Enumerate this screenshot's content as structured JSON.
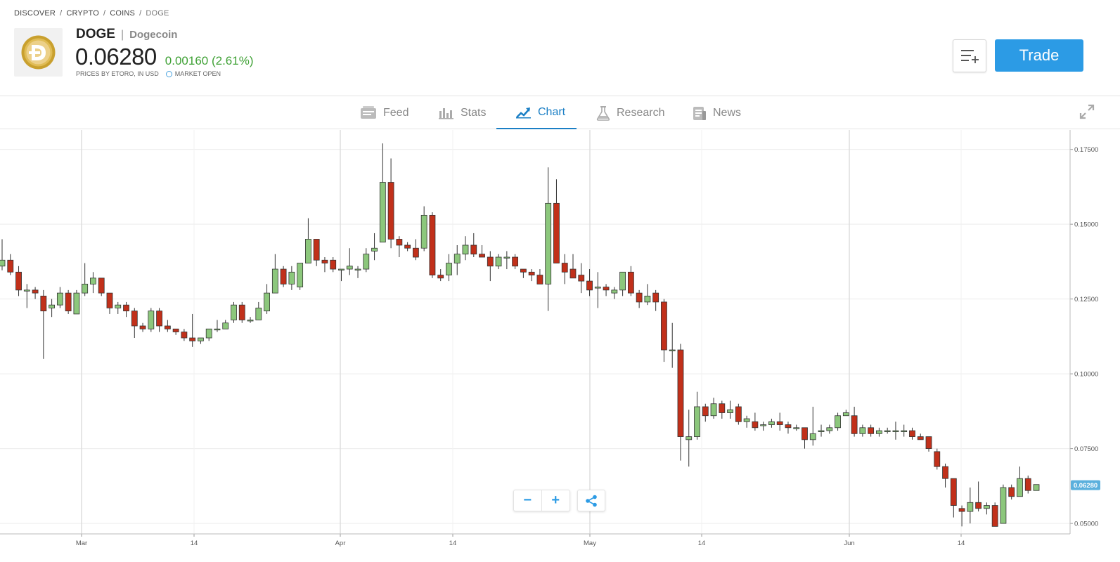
{
  "breadcrumb": {
    "items": [
      "DISCOVER",
      "CRYPTO",
      "COINS",
      "DOGE"
    ],
    "separator": "/"
  },
  "asset": {
    "symbol": "DOGE",
    "name": "Dogecoin",
    "price": "0.06280",
    "change": "0.00160 (2.61%)",
    "price_source": "PRICES BY ETORO, IN USD",
    "market_status": "MARKET OPEN",
    "change_color": "#3fa135"
  },
  "actions": {
    "trade_label": "Trade"
  },
  "tabs": [
    {
      "label": "Feed",
      "icon": "feed-icon",
      "active": false
    },
    {
      "label": "Stats",
      "icon": "stats-icon",
      "active": false
    },
    {
      "label": "Chart",
      "icon": "chart-icon",
      "active": true
    },
    {
      "label": "Research",
      "icon": "research-icon",
      "active": false
    },
    {
      "label": "News",
      "icon": "news-icon",
      "active": false
    }
  ],
  "colors": {
    "accent": "#2c9be5",
    "up_candle": "#8cc77c",
    "down_candle": "#c1301a",
    "price_tag": "#5bb0dd"
  },
  "chart_data": {
    "type": "candlestick",
    "x_tick_labels": [
      "Mar",
      "14",
      "Apr",
      "14",
      "May",
      "14",
      "Jun",
      "14"
    ],
    "y_tick_labels": [
      "0.17500",
      "0.15000",
      "0.12500",
      "0.10000",
      "0.07500",
      "0.05000"
    ],
    "y_ticks": [
      0.175,
      0.15,
      0.125,
      0.1,
      0.075,
      0.05
    ],
    "ylim": [
      0.0465,
      0.1815
    ],
    "last_price_label": "0.06280",
    "last_price": 0.0628,
    "grid": true,
    "candles": [
      [
        0.136,
        0.138,
        0.1346,
        0.145
      ],
      [
        0.138,
        0.134,
        0.133,
        0.14
      ],
      [
        0.134,
        0.128,
        0.126,
        0.136
      ],
      [
        0.128,
        0.128,
        0.122,
        0.13
      ],
      [
        0.128,
        0.127,
        0.125,
        0.129
      ],
      [
        0.126,
        0.121,
        0.105,
        0.128
      ],
      [
        0.122,
        0.123,
        0.119,
        0.125
      ],
      [
        0.123,
        0.127,
        0.122,
        0.129
      ],
      [
        0.127,
        0.121,
        0.12,
        0.128
      ],
      [
        0.12,
        0.127,
        0.12,
        0.128
      ],
      [
        0.127,
        0.13,
        0.126,
        0.137
      ],
      [
        0.13,
        0.132,
        0.127,
        0.134
      ],
      [
        0.132,
        0.127,
        0.126,
        0.132
      ],
      [
        0.127,
        0.122,
        0.12,
        0.127
      ],
      [
        0.122,
        0.123,
        0.12,
        0.124
      ],
      [
        0.123,
        0.121,
        0.119,
        0.124
      ],
      [
        0.121,
        0.116,
        0.112,
        0.122
      ],
      [
        0.116,
        0.115,
        0.114,
        0.117
      ],
      [
        0.115,
        0.121,
        0.114,
        0.122
      ],
      [
        0.121,
        0.116,
        0.114,
        0.122
      ],
      [
        0.116,
        0.115,
        0.114,
        0.118
      ],
      [
        0.115,
        0.114,
        0.113,
        0.115
      ],
      [
        0.114,
        0.112,
        0.111,
        0.115
      ],
      [
        0.112,
        0.111,
        0.109,
        0.12
      ],
      [
        0.111,
        0.112,
        0.11,
        0.112
      ],
      [
        0.112,
        0.115,
        0.111,
        0.115
      ],
      [
        0.115,
        0.115,
        0.114,
        0.118
      ],
      [
        0.115,
        0.117,
        0.115,
        0.118
      ],
      [
        0.118,
        0.123,
        0.117,
        0.124
      ],
      [
        0.123,
        0.118,
        0.117,
        0.124
      ],
      [
        0.118,
        0.118,
        0.117,
        0.119
      ],
      [
        0.118,
        0.122,
        0.118,
        0.124
      ],
      [
        0.121,
        0.127,
        0.12,
        0.13
      ],
      [
        0.127,
        0.135,
        0.127,
        0.14
      ],
      [
        0.135,
        0.13,
        0.129,
        0.136
      ],
      [
        0.13,
        0.134,
        0.128,
        0.136
      ],
      [
        0.129,
        0.137,
        0.128,
        0.137
      ],
      [
        0.137,
        0.145,
        0.137,
        0.152
      ],
      [
        0.145,
        0.138,
        0.136,
        0.145
      ],
      [
        0.138,
        0.137,
        0.134,
        0.139
      ],
      [
        0.138,
        0.135,
        0.134,
        0.139
      ],
      [
        0.135,
        0.135,
        0.131,
        0.135
      ],
      [
        0.135,
        0.136,
        0.133,
        0.142
      ],
      [
        0.135,
        0.135,
        0.132,
        0.136
      ],
      [
        0.135,
        0.14,
        0.134,
        0.142
      ],
      [
        0.141,
        0.142,
        0.138,
        0.147
      ],
      [
        0.144,
        0.164,
        0.144,
        0.177
      ],
      [
        0.164,
        0.145,
        0.142,
        0.172
      ],
      [
        0.145,
        0.143,
        0.139,
        0.146
      ],
      [
        0.143,
        0.142,
        0.141,
        0.144
      ],
      [
        0.142,
        0.139,
        0.138,
        0.145
      ],
      [
        0.142,
        0.153,
        0.141,
        0.156
      ],
      [
        0.153,
        0.133,
        0.132,
        0.154
      ],
      [
        0.133,
        0.132,
        0.131,
        0.135
      ],
      [
        0.133,
        0.137,
        0.131,
        0.14
      ],
      [
        0.137,
        0.14,
        0.133,
        0.143
      ],
      [
        0.14,
        0.143,
        0.138,
        0.146
      ],
      [
        0.143,
        0.14,
        0.139,
        0.147
      ],
      [
        0.14,
        0.139,
        0.139,
        0.143
      ],
      [
        0.139,
        0.136,
        0.131,
        0.141
      ],
      [
        0.136,
        0.139,
        0.135,
        0.14
      ],
      [
        0.139,
        0.139,
        0.135,
        0.141
      ],
      [
        0.139,
        0.136,
        0.135,
        0.14
      ],
      [
        0.135,
        0.134,
        0.132,
        0.135
      ],
      [
        0.134,
        0.133,
        0.131,
        0.135
      ],
      [
        0.133,
        0.13,
        0.13,
        0.135
      ],
      [
        0.13,
        0.157,
        0.121,
        0.169
      ],
      [
        0.157,
        0.137,
        0.137,
        0.165
      ],
      [
        0.137,
        0.134,
        0.13,
        0.14
      ],
      [
        0.135,
        0.132,
        0.132,
        0.14
      ],
      [
        0.133,
        0.131,
        0.127,
        0.137
      ],
      [
        0.131,
        0.128,
        0.126,
        0.135
      ],
      [
        0.129,
        0.129,
        0.122,
        0.134
      ],
      [
        0.129,
        0.128,
        0.126,
        0.13
      ],
      [
        0.127,
        0.128,
        0.125,
        0.129
      ],
      [
        0.128,
        0.134,
        0.126,
        0.134
      ],
      [
        0.134,
        0.127,
        0.126,
        0.136
      ],
      [
        0.127,
        0.124,
        0.122,
        0.128
      ],
      [
        0.124,
        0.126,
        0.123,
        0.13
      ],
      [
        0.127,
        0.124,
        0.121,
        0.128
      ],
      [
        0.124,
        0.108,
        0.104,
        0.125
      ],
      [
        0.108,
        0.108,
        0.102,
        0.117
      ],
      [
        0.108,
        0.079,
        0.071,
        0.11
      ],
      [
        0.078,
        0.079,
        0.069,
        0.088
      ],
      [
        0.079,
        0.089,
        0.078,
        0.094
      ],
      [
        0.089,
        0.086,
        0.084,
        0.09
      ],
      [
        0.086,
        0.09,
        0.085,
        0.092
      ],
      [
        0.09,
        0.087,
        0.085,
        0.091
      ],
      [
        0.087,
        0.088,
        0.085,
        0.091
      ],
      [
        0.089,
        0.084,
        0.083,
        0.09
      ],
      [
        0.084,
        0.085,
        0.082,
        0.086
      ],
      [
        0.084,
        0.082,
        0.081,
        0.087
      ],
      [
        0.083,
        0.083,
        0.081,
        0.084
      ],
      [
        0.083,
        0.084,
        0.082,
        0.085
      ],
      [
        0.084,
        0.083,
        0.081,
        0.087
      ],
      [
        0.083,
        0.082,
        0.08,
        0.084
      ],
      [
        0.082,
        0.082,
        0.081,
        0.083
      ],
      [
        0.082,
        0.078,
        0.075,
        0.082
      ],
      [
        0.078,
        0.08,
        0.076,
        0.089
      ],
      [
        0.081,
        0.081,
        0.079,
        0.083
      ],
      [
        0.081,
        0.082,
        0.08,
        0.083
      ],
      [
        0.082,
        0.086,
        0.081,
        0.087
      ],
      [
        0.086,
        0.087,
        0.086,
        0.088
      ],
      [
        0.086,
        0.08,
        0.079,
        0.089
      ],
      [
        0.08,
        0.082,
        0.079,
        0.083
      ],
      [
        0.082,
        0.08,
        0.079,
        0.083
      ],
      [
        0.08,
        0.081,
        0.079,
        0.082
      ],
      [
        0.081,
        0.081,
        0.08,
        0.082
      ],
      [
        0.081,
        0.081,
        0.078,
        0.084
      ],
      [
        0.081,
        0.081,
        0.079,
        0.083
      ],
      [
        0.081,
        0.079,
        0.078,
        0.082
      ],
      [
        0.079,
        0.078,
        0.078,
        0.08
      ],
      [
        0.079,
        0.075,
        0.074,
        0.079
      ],
      [
        0.074,
        0.069,
        0.068,
        0.075
      ],
      [
        0.069,
        0.065,
        0.062,
        0.07
      ],
      [
        0.065,
        0.056,
        0.052,
        0.065
      ],
      [
        0.055,
        0.054,
        0.049,
        0.056
      ],
      [
        0.054,
        0.057,
        0.05,
        0.062
      ],
      [
        0.057,
        0.055,
        0.054,
        0.064
      ],
      [
        0.055,
        0.056,
        0.053,
        0.057
      ],
      [
        0.056,
        0.049,
        0.049,
        0.057
      ],
      [
        0.05,
        0.062,
        0.05,
        0.063
      ],
      [
        0.062,
        0.059,
        0.058,
        0.063
      ],
      [
        0.059,
        0.065,
        0.059,
        0.069
      ],
      [
        0.065,
        0.061,
        0.06,
        0.066
      ],
      [
        0.061,
        0.063,
        0.061,
        0.063
      ]
    ]
  }
}
